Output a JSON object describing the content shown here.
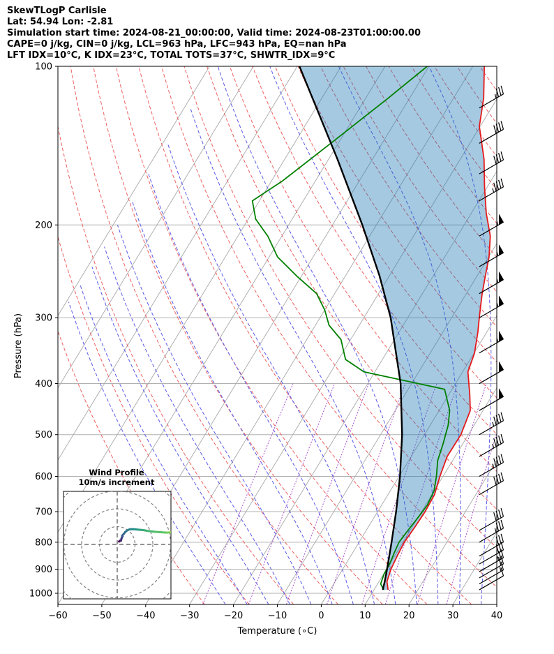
{
  "header": {
    "lines": [
      "SkewTLogP Carlisle",
      "Lat: 54.94   Lon: -2.81",
      "Simulation start time: 2024-08-21_00:00:00, Valid time: 2024-08-23T01:00:00.00",
      "CAPE=0 j/kg, CIN=0 j/kg, LCL=963 hPa, LFC=943 hPa, EQ=nan hPa",
      "LFT IDX=10°C, K IDX=23°C, TOTAL TOTS=37°C, SHWTR_IDX=9°C"
    ]
  },
  "chart_data": {
    "type": "line",
    "title": "SkewTLogP Carlisle",
    "xlabel": "Temperature (∘C)",
    "ylabel": "Pressure (hPa)",
    "xlim": [
      -60,
      40
    ],
    "ylim": [
      1050,
      100
    ],
    "x_ticks": [
      -60,
      -50,
      -40,
      -30,
      -20,
      -10,
      0,
      10,
      20,
      30,
      40
    ],
    "x_tick_labels": [
      "−60",
      "−50",
      "−40",
      "−30",
      "−20",
      "−10",
      "0",
      "10",
      "20",
      "30",
      "40"
    ],
    "y_ticks": [
      1000,
      900,
      800,
      700,
      600,
      500,
      400,
      300,
      200,
      100
    ],
    "y_tick_labels": [
      "1000",
      "900",
      "800",
      "700",
      "600",
      "500",
      "400",
      "300",
      "200",
      "100"
    ],
    "skew_deg_per_decade": 73,
    "series": [
      {
        "name": "Temperature",
        "color": "#e41a1c",
        "p": [
          985,
          950,
          900,
          850,
          800,
          750,
          700,
          650,
          600,
          550,
          500,
          450,
          420,
          380,
          350,
          320,
          300,
          270,
          250,
          230,
          210,
          190,
          170,
          150,
          130,
          115,
          100
        ],
        "t": [
          13.2,
          11.8,
          11.0,
          10.6,
          10.3,
          10.6,
          10.8,
          10.6,
          9.3,
          8.2,
          8.3,
          7.1,
          4.8,
          1.2,
          0.1,
          -2.0,
          -3.7,
          -6.4,
          -8.1,
          -9.9,
          -12.5,
          -16.6,
          -20.5,
          -24.6,
          -30.2,
          -33.1,
          -37.4
        ]
      },
      {
        "name": "Dewpoint",
        "color": "#008000",
        "p": [
          985,
          960,
          920,
          880,
          840,
          800,
          760,
          720,
          680,
          640,
          600,
          560,
          520,
          480,
          450,
          410,
          380,
          360,
          330,
          310,
          290,
          270,
          250,
          230,
          210,
          195,
          180,
          165,
          140,
          115,
          100
        ],
        "t": [
          12.2,
          10.7,
          10.1,
          10.0,
          9.5,
          9.1,
          9.5,
          10.0,
          10.4,
          10.0,
          8.5,
          6.6,
          5.5,
          4.1,
          2.4,
          -1.7,
          -22.5,
          -28.4,
          -32.2,
          -36.9,
          -40.0,
          -44.1,
          -51.1,
          -58.1,
          -63.2,
          -68.3,
          -71.6,
          -67.5,
          -61.7,
          -54.9,
          -50.4
        ]
      },
      {
        "name": "Parcel profile",
        "color": "#000000",
        "p": [
          985,
          950,
          900,
          850,
          800,
          700,
          600,
          500,
          400,
          300,
          250,
          200,
          150,
          100
        ],
        "t": [
          12.0,
          11.3,
          10.1,
          8.8,
          7.4,
          4.2,
          0.2,
          -5.1,
          -12.5,
          -23.9,
          -32.2,
          -43.2,
          -58.0,
          -79.5
        ]
      }
    ],
    "shading": {
      "name": "CAPE/CIN area",
      "between": [
        "Parcel profile",
        "Temperature"
      ],
      "color": "#1f77b4",
      "alpha": 0.4
    },
    "background_lines": {
      "isotherms_C": [
        -100,
        -90,
        -80,
        -70,
        -60,
        -50,
        -40,
        -30,
        -20,
        -10,
        0,
        10,
        20,
        30,
        40
      ],
      "dry_adiabats_theta_C": [
        -30,
        -20,
        -10,
        0,
        10,
        20,
        30,
        40,
        50,
        60,
        70,
        80,
        90,
        100,
        110,
        120,
        130,
        140,
        150,
        160,
        170,
        180,
        190,
        200
      ],
      "moist_adiabats_C": [
        -25,
        -20,
        -15,
        -10,
        -5,
        0,
        5,
        10,
        15,
        20,
        25,
        30,
        35
      ],
      "mixing_ratio_lines": [
        0.4,
        1,
        2,
        4,
        7,
        10,
        16,
        24
      ]
    },
    "wind_barbs": {
      "x_position_C": 36,
      "p": [
        985,
        960,
        935,
        910,
        880,
        850,
        800,
        760,
        650,
        600,
        550,
        500,
        450,
        400,
        350,
        300,
        270,
        240,
        210,
        180,
        160,
        140,
        120
      ],
      "speed_kt": [
        10,
        15,
        20,
        25,
        30,
        30,
        35,
        40,
        40,
        45,
        45,
        45,
        50,
        50,
        55,
        55,
        55,
        55,
        55,
        45,
        40,
        40,
        35
      ],
      "dir_deg": [
        240,
        240,
        240,
        240,
        240,
        240,
        240,
        240,
        240,
        240,
        240,
        240,
        240,
        240,
        240,
        240,
        240,
        240,
        240,
        240,
        240,
        240,
        240
      ]
    },
    "hodograph": {
      "title": "Wind Profile",
      "subtitle": "10m/s increment",
      "ring_step_ms": 10,
      "rings": 4,
      "u": [
        1.0,
        1.6,
        2.0,
        2.1,
        2.4,
        2.6,
        3.0,
        2.8,
        3.8,
        4.5,
        5.5,
        7.0,
        9.0,
        11.0,
        13.0,
        15.0,
        17.0,
        21.0,
        25.0,
        28.0,
        30.0,
        31.5,
        33.0,
        34.0,
        36.0,
        38.0
      ],
      "v": [
        1.6,
        2.1,
        2.0,
        2.2,
        3.2,
        4.0,
        4.5,
        5.0,
        6.0,
        7.0,
        7.8,
        8.5,
        8.6,
        8.4,
        8.2,
        8.0,
        7.6,
        7.1,
        6.8,
        6.6,
        6.8,
        7.2,
        8.0,
        8.5,
        9.5,
        11.0
      ]
    }
  }
}
